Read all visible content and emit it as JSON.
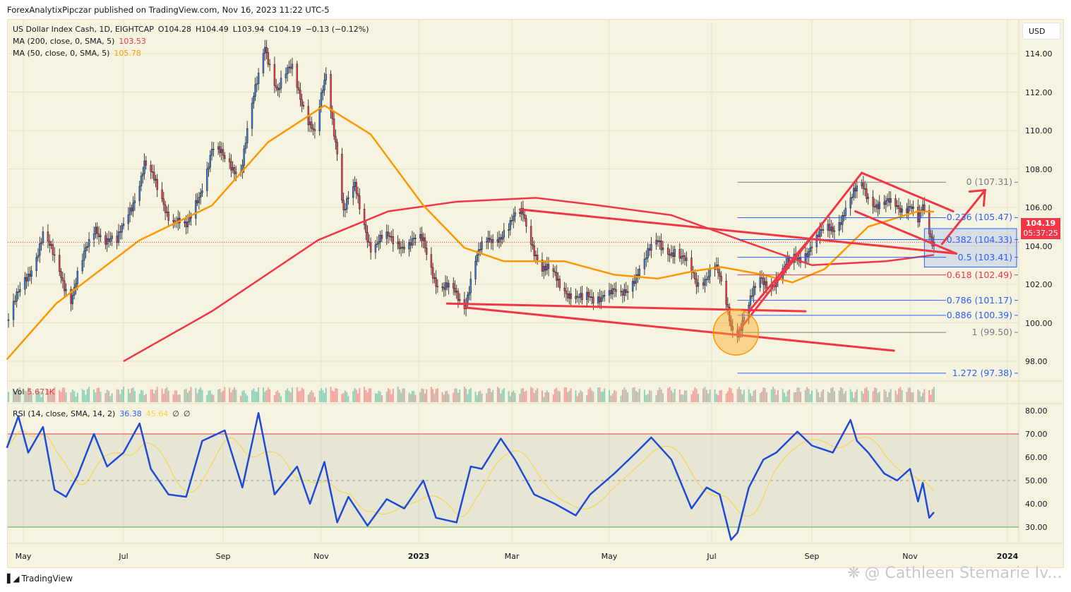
{
  "header": {
    "published": "ForexAnalytixPipczar published on TradingView.com, Nov 16, 2023 11:22 UTC-5"
  },
  "legend": {
    "symbol": "US Dollar Index Cash, 1D, EIGHTCAP",
    "open": "O104.28",
    "high": "H104.49",
    "low": "L103.94",
    "close": "C104.19",
    "change": "−0.13 (−0.12%)",
    "ma200_label": "MA (200, close, 0, SMA, 5)",
    "ma200_value": "103.53",
    "ma50_label": "MA (50, close, 0, SMA, 5)",
    "ma50_value": "105.78",
    "vol_label": "Vol",
    "vol_value": "5.671K",
    "rsi_label": "RSI (14, close, SMA, 14, 2)",
    "rsi_value": "36.38",
    "rsi_ma_value": "45.64",
    "rsi_extra1": "∅",
    "rsi_extra2": "∅"
  },
  "currency_button": "USD",
  "price_tag": {
    "price": "104.19",
    "countdown": "05:37:25"
  },
  "footer": {
    "logo_text": "TradingView",
    "watermark": "@ Cathleen Stemarie Iv..."
  },
  "colors": {
    "background": "#f6f4e0",
    "up": "#3d7bd9",
    "down": "#e8414f",
    "ma200": "#f23645",
    "ma50": "#ff9800",
    "rsi": "#1e4bd6",
    "rsi_ma": "#f7d43a",
    "drawing": "#f23645",
    "fib_blue": "#2962ff",
    "fib_gray": "#787b86"
  },
  "chart_data": {
    "type": "candlestick",
    "title": "US Dollar Index Cash, 1D, EIGHTCAP",
    "x_ticks": [
      {
        "label": "May",
        "date": "2022-05-01"
      },
      {
        "label": "Jul",
        "date": "2022-07-01"
      },
      {
        "label": "Sep",
        "date": "2022-09-01"
      },
      {
        "label": "Nov",
        "date": "2022-11-01"
      },
      {
        "label": "2023",
        "date": "2023-01-01"
      },
      {
        "label": "Mar",
        "date": "2023-03-01"
      },
      {
        "label": "May",
        "date": "2023-05-01"
      },
      {
        "label": "Jul",
        "date": "2023-07-01"
      },
      {
        "label": "Sep",
        "date": "2023-09-01"
      },
      {
        "label": "Nov",
        "date": "2023-11-01"
      },
      {
        "label": "2024",
        "date": "2024-01-01"
      }
    ],
    "y_ticks": [
      "114.00",
      "112.00",
      "110.00",
      "108.00",
      "106.00",
      "104.00",
      "102.00",
      "100.00",
      "98.00"
    ],
    "ylim": [
      97.0,
      115.3
    ],
    "close_path": [
      [
        "2022-04-22",
        100.1
      ],
      [
        "2022-05-13",
        104.5
      ],
      [
        "2022-05-30",
        101.4
      ],
      [
        "2022-06-14",
        105.0
      ],
      [
        "2022-06-27",
        104.0
      ],
      [
        "2022-07-14",
        108.2
      ],
      [
        "2022-07-29",
        105.8
      ],
      [
        "2022-08-09",
        104.7
      ],
      [
        "2022-08-25",
        108.9
      ],
      [
        "2022-09-12",
        108.0
      ],
      [
        "2022-09-27",
        114.6
      ],
      [
        "2022-10-05",
        112.0
      ],
      [
        "2022-10-14",
        113.3
      ],
      [
        "2022-10-28",
        109.6
      ],
      [
        "2022-11-04",
        112.9
      ],
      [
        "2022-11-11",
        109.1
      ],
      [
        "2022-11-15",
        105.8
      ],
      [
        "2022-11-22",
        106.9
      ],
      [
        "2022-12-02",
        104.1
      ],
      [
        "2022-12-15",
        104.3
      ],
      [
        "2023-01-04",
        104.1
      ],
      [
        "2023-01-13",
        102.1
      ],
      [
        "2023-01-30",
        101.0
      ],
      [
        "2023-02-06",
        103.4
      ],
      [
        "2023-02-24",
        104.9
      ],
      [
        "2023-03-08",
        105.6
      ],
      [
        "2023-03-20",
        102.8
      ],
      [
        "2023-04-03",
        101.9
      ],
      [
        "2023-04-14",
        101.0
      ],
      [
        "2023-04-28",
        101.7
      ],
      [
        "2023-05-08",
        101.2
      ],
      [
        "2023-05-17",
        102.7
      ],
      [
        "2023-05-30",
        104.1
      ],
      [
        "2023-06-09",
        103.8
      ],
      [
        "2023-06-22",
        102.1
      ],
      [
        "2023-07-03",
        103.0
      ],
      [
        "2023-07-13",
        99.9
      ],
      [
        "2023-07-17",
        99.7
      ],
      [
        "2023-07-31",
        102.1
      ],
      [
        "2023-08-10",
        102.3
      ],
      [
        "2023-08-28",
        103.8
      ],
      [
        "2023-09-14",
        105.0
      ],
      [
        "2023-10-02",
        107.1
      ],
      [
        "2023-10-13",
        106.1
      ],
      [
        "2023-10-24",
        106.0
      ],
      [
        "2023-11-01",
        106.3
      ],
      [
        "2023-11-06",
        105.2
      ],
      [
        "2023-11-09",
        105.8
      ],
      [
        "2023-11-14",
        104.3
      ],
      [
        "2023-11-16",
        104.19
      ]
    ],
    "ma50": [
      [
        "2022-04-21",
        98.1
      ],
      [
        "2022-05-21",
        101.0
      ],
      [
        "2022-07-11",
        104.3
      ],
      [
        "2022-08-25",
        106.1
      ],
      [
        "2022-09-29",
        109.4
      ],
      [
        "2022-11-03",
        111.3
      ],
      [
        "2022-12-02",
        109.8
      ],
      [
        "2023-01-04",
        106.1
      ],
      [
        "2023-01-30",
        103.9
      ],
      [
        "2023-02-24",
        103.2
      ],
      [
        "2023-04-03",
        103.2
      ],
      [
        "2023-05-04",
        102.5
      ],
      [
        "2023-05-30",
        102.3
      ],
      [
        "2023-06-21",
        102.7
      ],
      [
        "2023-07-07",
        102.9
      ],
      [
        "2023-08-02",
        102.5
      ],
      [
        "2023-08-20",
        102.1
      ],
      [
        "2023-09-09",
        102.8
      ],
      [
        "2023-10-06",
        105.0
      ],
      [
        "2023-11-06",
        105.8
      ],
      [
        "2023-11-16",
        105.78
      ]
    ],
    "ma200": [
      [
        "2022-07-01",
        98.0
      ],
      [
        "2022-08-25",
        100.6
      ],
      [
        "2022-10-30",
        104.3
      ],
      [
        "2022-12-13",
        105.8
      ],
      [
        "2023-01-25",
        106.3
      ],
      [
        "2023-03-16",
        106.5
      ],
      [
        "2023-04-25",
        106.1
      ],
      [
        "2023-06-07",
        105.6
      ],
      [
        "2023-07-19",
        104.3
      ],
      [
        "2023-09-01",
        103.0
      ],
      [
        "2023-10-17",
        103.2
      ],
      [
        "2023-11-16",
        103.53
      ]
    ],
    "last_price": 104.19,
    "fib_levels": [
      {
        "label": "0 (107.31)",
        "level": 0,
        "price": 107.31,
        "color": "#787b86"
      },
      {
        "label": "0.236 (105.47)",
        "level": 0.236,
        "price": 105.47,
        "color": "#2962ff"
      },
      {
        "label": "0.382 (104.33)",
        "level": 0.382,
        "price": 104.33,
        "color": "#2962ff"
      },
      {
        "label": "0.5 (103.41)",
        "level": 0.5,
        "price": 103.41,
        "color": "#2962ff"
      },
      {
        "label": "0.618 (102.49)",
        "level": 0.618,
        "price": 102.49,
        "color": "#f23645"
      },
      {
        "label": "0.786 (101.17)",
        "level": 0.786,
        "price": 101.17,
        "color": "#2962ff"
      },
      {
        "label": "0.886 (100.39)",
        "level": 0.886,
        "price": 100.39,
        "color": "#2962ff"
      },
      {
        "label": "1 (99.50)",
        "level": 1,
        "price": 99.5,
        "color": "#787b86"
      },
      {
        "label": "1.272 (97.38)",
        "level": 1.272,
        "price": 97.38,
        "color": "#2962ff"
      }
    ],
    "fib_start": "2023-07-17",
    "zone_box": {
      "from": "2023-11-10",
      "to": "2023-12-31",
      "price_top": 104.9,
      "price_bottom": 102.9
    },
    "trendlines": [
      [
        [
          "2023-03-06",
          105.9
        ],
        [
          "2023-11-30",
          103.6
        ]
      ],
      [
        [
          "2023-01-19",
          101.0
        ],
        [
          "2023-08-28",
          100.6
        ]
      ],
      [
        [
          "2023-01-30",
          100.8
        ],
        [
          "2023-10-22",
          98.55
        ]
      ],
      [
        [
          "2023-07-17",
          99.5
        ],
        [
          "2023-10-02",
          107.8
        ]
      ],
      [
        [
          "2023-07-24",
          100.6
        ],
        [
          "2023-09-05",
          104.9
        ]
      ],
      [
        [
          "2023-10-02",
          107.8
        ],
        [
          "2023-11-28",
          105.8
        ]
      ],
      [
        [
          "2023-09-28",
          105.8
        ],
        [
          "2023-11-30",
          103.6
        ]
      ]
    ],
    "arrow": [
      [
        "2023-11-21",
        104.1
      ],
      [
        "2023-12-18",
        106.9
      ]
    ],
    "circle": {
      "date": "2023-07-16",
      "price": 99.5
    },
    "rsi": {
      "y_ticks": [
        "80.00",
        "70.00",
        "60.00",
        "50.00",
        "40.00",
        "30.00"
      ],
      "upper_band": 70,
      "middle_band": 50,
      "lower_band": 30,
      "values": [
        [
          "2022-04-21",
          64
        ],
        [
          "2022-04-28",
          77.6
        ],
        [
          "2022-05-04",
          62
        ],
        [
          "2022-05-13",
          73
        ],
        [
          "2022-05-20",
          46
        ],
        [
          "2022-05-27",
          43
        ],
        [
          "2022-06-03",
          52
        ],
        [
          "2022-06-13",
          70
        ],
        [
          "2022-06-21",
          56
        ],
        [
          "2022-07-01",
          62
        ],
        [
          "2022-07-11",
          74.5
        ],
        [
          "2022-07-18",
          55
        ],
        [
          "2022-07-29",
          44
        ],
        [
          "2022-08-09",
          43
        ],
        [
          "2022-08-19",
          67
        ],
        [
          "2022-09-02",
          71.5
        ],
        [
          "2022-09-13",
          47
        ],
        [
          "2022-09-23",
          79
        ],
        [
          "2022-10-03",
          44
        ],
        [
          "2022-10-17",
          56
        ],
        [
          "2022-10-25",
          40
        ],
        [
          "2022-11-03",
          58
        ],
        [
          "2022-11-11",
          32
        ],
        [
          "2022-11-18",
          43
        ],
        [
          "2022-11-30",
          30.6
        ],
        [
          "2022-12-12",
          42
        ],
        [
          "2022-12-23",
          38
        ],
        [
          "2023-01-04",
          50
        ],
        [
          "2023-01-12",
          34
        ],
        [
          "2023-01-25",
          32
        ],
        [
          "2023-02-03",
          56
        ],
        [
          "2023-02-10",
          55
        ],
        [
          "2023-02-22",
          68
        ],
        [
          "2023-03-03",
          59
        ],
        [
          "2023-03-15",
          44
        ],
        [
          "2023-03-28",
          40
        ],
        [
          "2023-04-10",
          35
        ],
        [
          "2023-04-19",
          44
        ],
        [
          "2023-05-04",
          53
        ],
        [
          "2023-05-17",
          62
        ],
        [
          "2023-05-26",
          68.5
        ],
        [
          "2023-06-07",
          59
        ],
        [
          "2023-06-19",
          38
        ],
        [
          "2023-06-28",
          47
        ],
        [
          "2023-07-06",
          44
        ],
        [
          "2023-07-13",
          24.5
        ],
        [
          "2023-07-17",
          27.6
        ],
        [
          "2023-07-24",
          47
        ],
        [
          "2023-08-02",
          59
        ],
        [
          "2023-08-10",
          62
        ],
        [
          "2023-08-23",
          71
        ],
        [
          "2023-09-01",
          65
        ],
        [
          "2023-09-14",
          62
        ],
        [
          "2023-09-25",
          76
        ],
        [
          "2023-09-29",
          67
        ],
        [
          "2023-10-06",
          62
        ],
        [
          "2023-10-16",
          53
        ],
        [
          "2023-10-24",
          50
        ],
        [
          "2023-11-01",
          55
        ],
        [
          "2023-11-06",
          41
        ],
        [
          "2023-11-09",
          49
        ],
        [
          "2023-11-13",
          34
        ],
        [
          "2023-11-16",
          36.38
        ]
      ]
    }
  }
}
